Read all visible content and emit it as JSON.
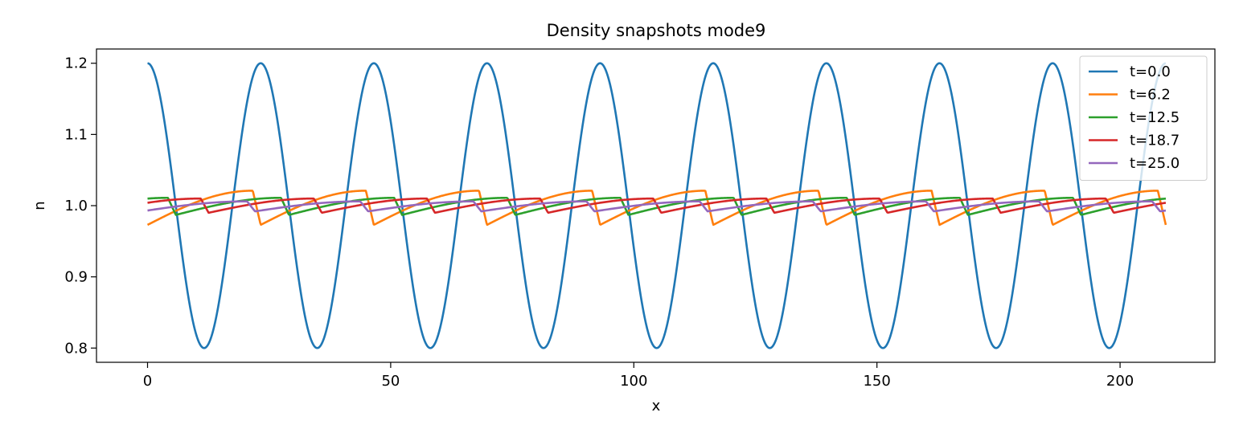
{
  "chart_data": {
    "type": "line",
    "title": "Density snapshots  mode9",
    "xlabel": "x",
    "ylabel": "n",
    "xlim": [
      -10.5,
      219.5
    ],
    "ylim": [
      0.78,
      1.22
    ],
    "xticks": [
      0,
      50,
      100,
      150,
      200
    ],
    "xtick_labels": [
      "0",
      "50",
      "100",
      "150",
      "200"
    ],
    "yticks": [
      0.8,
      0.9,
      1.0,
      1.1,
      1.2
    ],
    "ytick_labels": [
      "0.8",
      "0.9",
      "1.0",
      "1.1",
      "1.2"
    ],
    "grid": false,
    "legend_position": "top-right",
    "x_range": [
      0,
      209.4
    ],
    "mode_number": 9,
    "series": [
      {
        "name": "t=0.0",
        "color": "#1f77b4",
        "phase": 0.0,
        "mean": 1.0,
        "amplitude": 0.2,
        "shape": "cosine"
      },
      {
        "name": "t=6.2",
        "color": "#ff7f0e",
        "phase": 0.0,
        "mean": 0.997,
        "amplitude": 0.024,
        "shape": "sawtooth"
      },
      {
        "name": "t=12.5",
        "color": "#2ca02c",
        "phase": 0.75,
        "mean": 0.999,
        "amplitude": 0.012,
        "shape": "sawtooth"
      },
      {
        "name": "t=18.7",
        "color": "#d62728",
        "phase": 0.46,
        "mean": 1.0,
        "amplitude": 0.01,
        "shape": "sawtooth"
      },
      {
        "name": "t=25.0",
        "color": "#9467bd",
        "phase": 0.05,
        "mean": 0.999,
        "amplitude": 0.007,
        "shape": "sawtooth"
      }
    ]
  }
}
